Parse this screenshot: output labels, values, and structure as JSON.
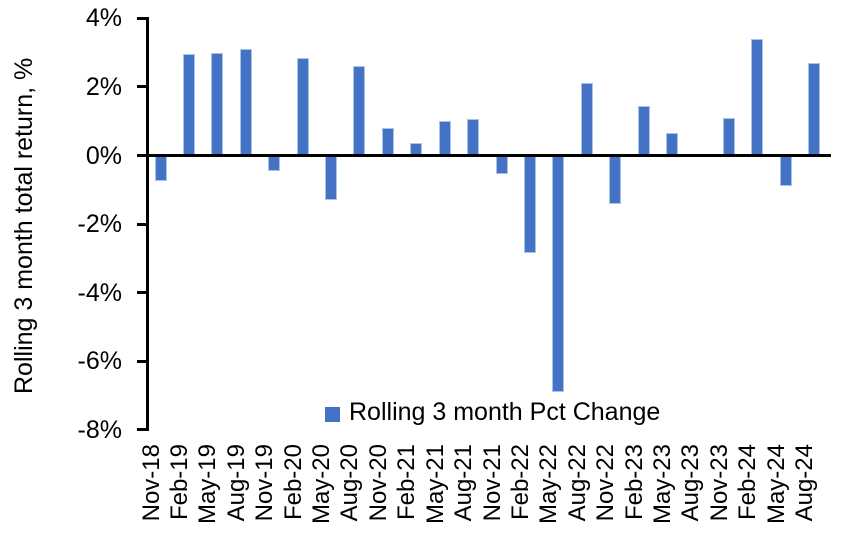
{
  "chart_data": {
    "type": "bar",
    "title": "",
    "xlabel": "",
    "ylabel": "Rolling 3 month total return, %",
    "ylim": [
      -8,
      4
    ],
    "grid": false,
    "bar_color": "#4472C4",
    "bar_border_color": "#A9C4E9",
    "axis_color": "#000000",
    "legend": {
      "position": "bottom-center",
      "entries": [
        "Rolling 3 month Pct Change"
      ]
    },
    "yticks": [
      {
        "value": 4,
        "label": "4%"
      },
      {
        "value": 2,
        "label": "2%"
      },
      {
        "value": 0,
        "label": "0%"
      },
      {
        "value": -2,
        "label": "-2%"
      },
      {
        "value": -4,
        "label": "-4%"
      },
      {
        "value": -6,
        "label": "-6%"
      },
      {
        "value": -8,
        "label": "-8%"
      }
    ],
    "categories": [
      "Nov-18",
      "Feb-19",
      "May-19",
      "Aug-19",
      "Nov-19",
      "Feb-20",
      "May-20",
      "Aug-20",
      "Nov-20",
      "Feb-21",
      "May-21",
      "Aug-21",
      "Nov-21",
      "Feb-22",
      "May-22",
      "Aug-22",
      "Nov-22",
      "Feb-23",
      "May-23",
      "Aug-23",
      "Nov-23",
      "Feb-24",
      "May-24",
      "Aug-24"
    ],
    "values": [
      -0.75,
      2.95,
      3.0,
      3.1,
      -0.45,
      2.85,
      -1.3,
      2.6,
      0.8,
      0.35,
      1.0,
      1.05,
      -0.55,
      -2.85,
      -6.9,
      2.1,
      -1.4,
      1.45,
      0.65,
      0.0,
      1.1,
      3.4,
      -0.9,
      2.7
    ]
  }
}
